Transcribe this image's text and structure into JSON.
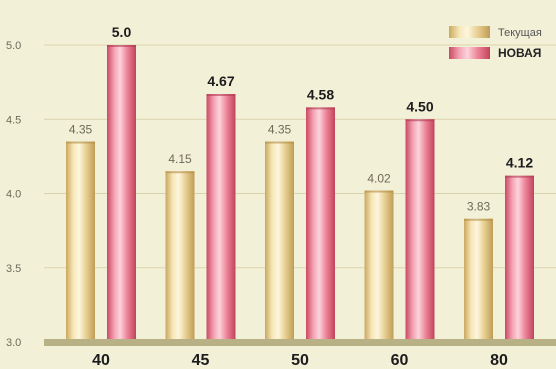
{
  "chart_data": {
    "type": "bar",
    "categories": [
      "40",
      "45",
      "50",
      "60",
      "80"
    ],
    "series": [
      {
        "name": "Текущая",
        "values": [
          4.35,
          4.15,
          4.35,
          4.02,
          3.83
        ],
        "labels": [
          "4.35",
          "4.15",
          "4.35",
          "4.02",
          "3.83"
        ],
        "color": "#e8d29a"
      },
      {
        "name": "НОВАЯ",
        "values": [
          5.0,
          4.67,
          4.58,
          4.5,
          4.12
        ],
        "labels": [
          "5.0",
          "4.67",
          "4.58",
          "4.50",
          "4.12"
        ],
        "color": "#e6758a"
      }
    ],
    "yticks": [
      "3.0",
      "3.5",
      "4.0",
      "4.5",
      "5.0"
    ],
    "ylim": [
      3.0,
      5.2
    ],
    "grid": true,
    "legend": "top-right",
    "background": "#f3f0d8",
    "axis_color": "#b7b185"
  }
}
